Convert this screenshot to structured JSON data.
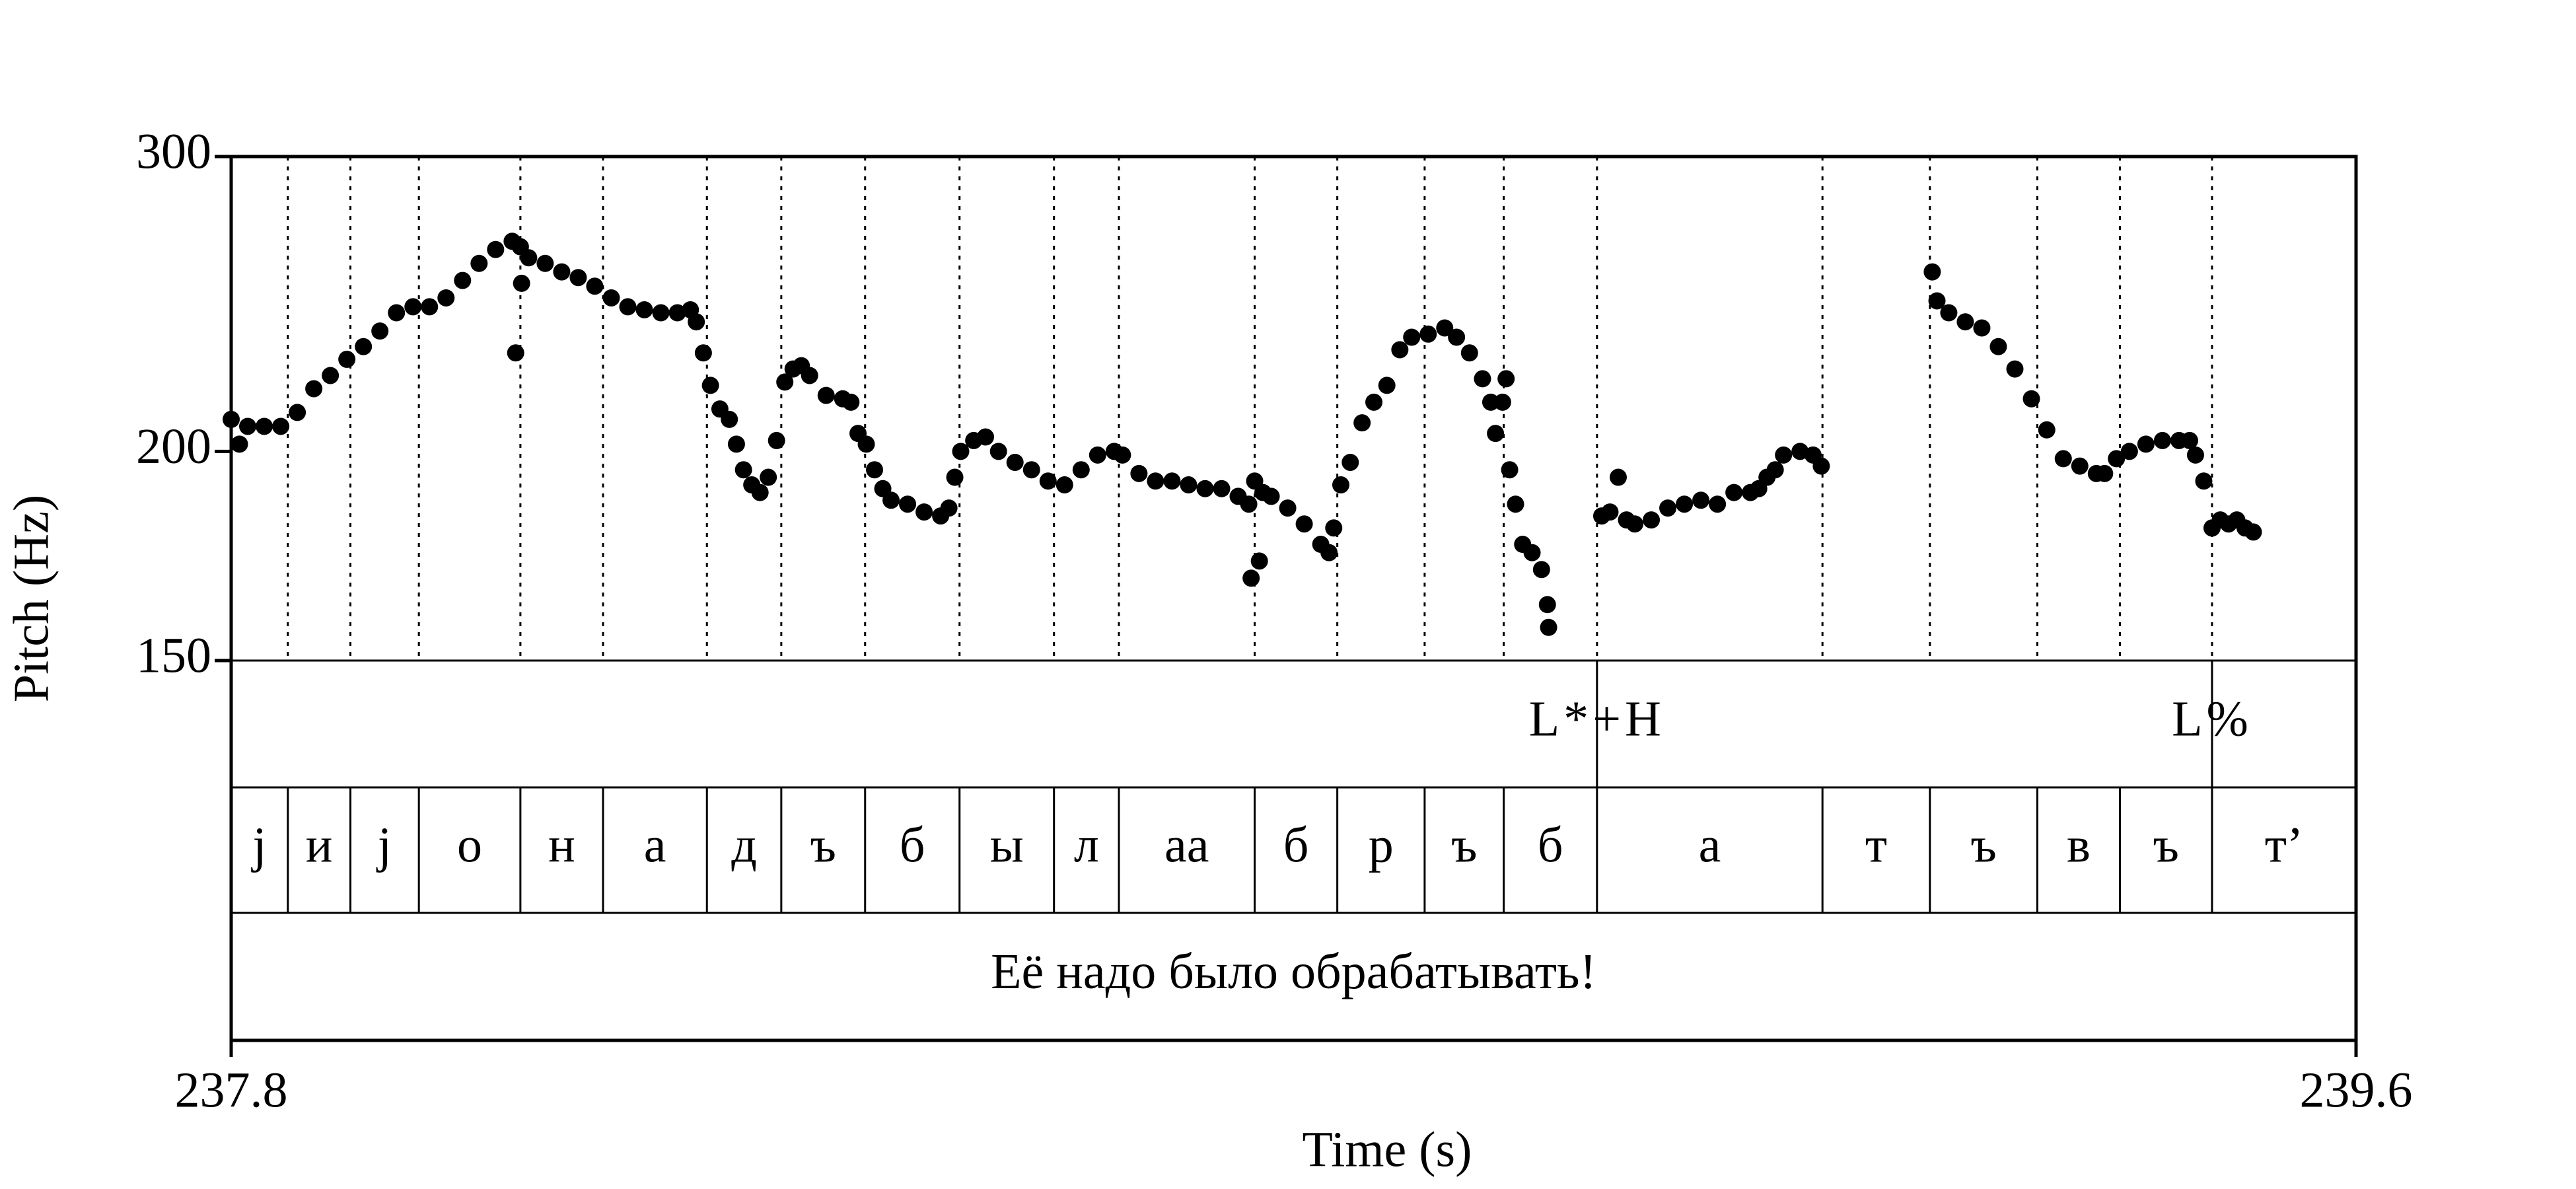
{
  "chart_data": {
    "type": "scatter",
    "xlabel": "Time (s)",
    "ylabel": "Pitch (Hz)",
    "xlim": [
      237.8,
      239.6
    ],
    "ylim": [
      150,
      300
    ],
    "xticks": [
      237.8,
      239.6
    ],
    "yticks": [
      150,
      200,
      300
    ],
    "yscale": "log",
    "color": "#000000",
    "x": [
      237.8,
      237.807,
      237.814,
      237.828,
      237.842,
      237.856,
      237.87,
      237.884,
      237.898,
      237.912,
      237.926,
      237.94,
      237.954,
      237.968,
      237.982,
      237.996,
      238.01,
      238.024,
      238.038,
      238.041,
      238.045,
      238.046,
      238.052,
      238.066,
      238.08,
      238.094,
      238.108,
      238.122,
      238.136,
      238.15,
      238.164,
      238.178,
      238.189,
      238.194,
      238.2,
      238.206,
      238.214,
      238.222,
      238.228,
      238.234,
      238.241,
      238.248,
      238.255,
      238.262,
      238.269,
      238.276,
      238.283,
      238.29,
      238.304,
      238.318,
      238.325,
      238.331,
      238.338,
      238.345,
      238.352,
      238.359,
      238.373,
      238.387,
      238.401,
      238.408,
      238.413,
      238.418,
      238.429,
      238.439,
      238.45,
      238.464,
      238.478,
      238.492,
      238.506,
      238.52,
      238.534,
      238.548,
      238.555,
      238.569,
      238.583,
      238.597,
      238.611,
      238.625,
      238.639,
      238.653,
      238.662,
      238.664,
      238.667,
      238.671,
      238.674,
      238.681,
      238.695,
      238.709,
      238.723,
      238.73,
      238.734,
      238.74,
      238.748,
      238.758,
      238.768,
      238.779,
      238.79,
      238.8,
      238.814,
      238.828,
      238.838,
      238.849,
      238.86,
      238.867,
      238.871,
      238.877,
      238.88,
      238.883,
      238.888,
      238.894,
      238.902,
      238.91,
      238.915,
      238.916,
      238.961,
      238.968,
      238.975,
      238.982,
      238.989,
      239.003,
      239.017,
      239.031,
      239.045,
      239.059,
      239.073,
      239.087,
      239.094,
      239.101,
      239.108,
      239.115,
      239.129,
      239.14,
      239.147,
      239.241,
      239.245,
      239.255,
      239.269,
      239.283,
      239.297,
      239.311,
      239.325,
      239.338,
      239.352,
      239.366,
      239.38,
      239.387,
      239.397,
      239.408,
      239.422,
      239.436,
      239.45,
      239.459,
      239.464,
      239.471,
      239.478,
      239.485,
      239.492,
      239.499,
      239.506,
      239.513
    ],
    "y": [
      209,
      202,
      207,
      207,
      207,
      211,
      218,
      222,
      227,
      231,
      236,
      242,
      244,
      244,
      247,
      253,
      259,
      264,
      267,
      229,
      265,
      252,
      261,
      259,
      256,
      254,
      251,
      247,
      244,
      243,
      242,
      242,
      243,
      239,
      229,
      219,
      212,
      209,
      202,
      195,
      191,
      189,
      193,
      203,
      220,
      224,
      225,
      222,
      216,
      215,
      214,
      205,
      202,
      195,
      190,
      187,
      186,
      184,
      183,
      185,
      193,
      200,
      203,
      204,
      200,
      197,
      195,
      192,
      191,
      195,
      199,
      200,
      199,
      194,
      192,
      192,
      191,
      190,
      190,
      188,
      186,
      168,
      192,
      172,
      189,
      188,
      185,
      181,
      176,
      174,
      180,
      191,
      197,
      208,
      214,
      219,
      230,
      234,
      235,
      237,
      234,
      229,
      221,
      214,
      205,
      214,
      221,
      195,
      186,
      176,
      174,
      170,
      162,
      157,
      183,
      184,
      193,
      182,
      181,
      182,
      185,
      186,
      187,
      186,
      189,
      189,
      190,
      193,
      195,
      199,
      200,
      199,
      196,
      256,
      246,
      242,
      239,
      237,
      231,
      224,
      215,
      206,
      198,
      196,
      194,
      194,
      198,
      200,
      202,
      203,
      203,
      203,
      199,
      192,
      180,
      182,
      181,
      182,
      180,
      179
    ],
    "tone_tier": {
      "points": [
        {
          "time": 238.957,
          "label": "L*+H"
        },
        {
          "time": 239.478,
          "label": "L%"
        }
      ]
    },
    "segment_tier": {
      "boundaries": [
        237.848,
        237.901,
        237.959,
        238.045,
        238.115,
        238.203,
        238.266,
        238.337,
        238.417,
        238.497,
        238.552,
        238.667,
        238.737,
        238.811,
        238.878,
        238.957,
        239.148,
        239.239,
        239.33,
        239.4,
        239.478
      ],
      "labels": [
        "j",
        "и",
        "j",
        "о",
        "н",
        "а",
        "д",
        "ъ",
        "б",
        "ы",
        "л",
        "аа",
        "б",
        "р",
        "ъ",
        "б",
        "а",
        "т",
        "ъ",
        "в",
        "ъ",
        "т’"
      ]
    },
    "sentence": "Её надо было обрабатывать!"
  }
}
